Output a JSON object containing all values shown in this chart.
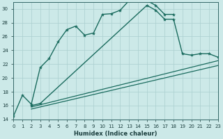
{
  "xlabel": "Humidex (Indice chaleur)",
  "background_color": "#cce9e8",
  "grid_color": "#aacfcf",
  "line_color": "#1a6b5e",
  "xlim": [
    0,
    23
  ],
  "ylim": [
    14,
    31
  ],
  "xticks": [
    0,
    1,
    2,
    3,
    4,
    5,
    6,
    7,
    8,
    9,
    10,
    11,
    12,
    13,
    14,
    15,
    16,
    17,
    18,
    19,
    20,
    21,
    22,
    23
  ],
  "yticks": [
    14,
    16,
    18,
    20,
    22,
    24,
    26,
    28,
    30
  ],
  "line1": {
    "x": [
      0,
      1,
      2,
      3,
      4,
      5,
      6,
      7,
      8,
      9,
      10,
      11,
      12,
      13,
      14,
      15,
      16,
      17,
      18
    ],
    "y": [
      14.5,
      17.5,
      16.2,
      21.5,
      22.8,
      25.2,
      27.0,
      27.5,
      26.2,
      26.5,
      29.2,
      29.3,
      29.8,
      31.2,
      31.5,
      31.2,
      30.5,
      29.2,
      29.2
    ]
  },
  "line2": {
    "x": [
      2,
      3,
      15,
      16,
      17,
      18,
      19,
      20,
      21,
      22,
      23
    ],
    "y": [
      16.0,
      16.3,
      30.5,
      29.8,
      28.5,
      28.5,
      23.5,
      23.3,
      23.5,
      23.5,
      23.0
    ]
  },
  "line3": {
    "x": [
      2,
      23
    ],
    "y": [
      15.8,
      22.5
    ]
  },
  "line4": {
    "x": [
      2,
      23
    ],
    "y": [
      15.5,
      21.8
    ]
  }
}
